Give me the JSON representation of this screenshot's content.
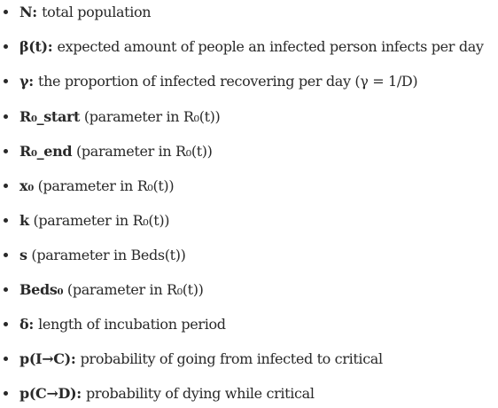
{
  "parameters": [
    {
      "term": "N",
      "separator": ": ",
      "description": "total population"
    },
    {
      "term": "β(t)",
      "separator": ": ",
      "description": "expected amount of people an infected person infects per day"
    },
    {
      "term": "γ",
      "separator": ": ",
      "description": "the proportion of infected recovering per day (γ = 1/D)"
    },
    {
      "term": "R₀_start",
      "separator": " ",
      "description": "(parameter in R₀(t))"
    },
    {
      "term": "R₀_end",
      "separator": " ",
      "description": "(parameter in R₀(t))"
    },
    {
      "term": "x₀",
      "separator": " ",
      "description": "(parameter in R₀(t))"
    },
    {
      "term": "k",
      "separator": " ",
      "description": "(parameter in R₀(t))"
    },
    {
      "term": "s",
      "separator": " ",
      "description": "(parameter in Beds(t))"
    },
    {
      "term": "Beds₀",
      "separator": " ",
      "description": "(parameter in R₀(t))"
    },
    {
      "term": "δ",
      "separator": ": ",
      "description": "length of incubation period"
    },
    {
      "term": "p(I→C)",
      "separator": ": ",
      "description": "probability of going from infected to critical"
    },
    {
      "term": "p(C→D)",
      "separator": ": ",
      "description": "probability of dying while critical"
    }
  ]
}
